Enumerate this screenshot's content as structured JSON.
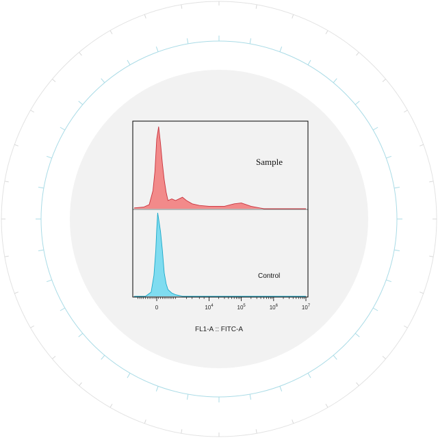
{
  "chart_data": {
    "type": "area",
    "xlabel": "FL1-A :: FITC-A",
    "ylabel": "",
    "x_scale": "biexponential",
    "x_ticks": [
      {
        "value": "0",
        "base": "0",
        "exp": ""
      },
      {
        "value": "10^4",
        "base": "10",
        "exp": "4"
      },
      {
        "value": "10^5",
        "base": "10",
        "exp": "5"
      },
      {
        "value": "10^6",
        "base": "10",
        "exp": "6"
      },
      {
        "value": "10^7",
        "base": "10",
        "exp": "7"
      }
    ],
    "x_range": [
      -1200,
      10000000
    ],
    "grid": false,
    "series": [
      {
        "name": "Sample",
        "color": "#f28a8a",
        "line_color": "#c8323c",
        "points": [
          [
            -1200,
            0.01
          ],
          [
            -700,
            0.02
          ],
          [
            -400,
            0.05
          ],
          [
            -200,
            0.22
          ],
          [
            -100,
            0.45
          ],
          [
            0,
            0.85
          ],
          [
            100,
            1.0
          ],
          [
            200,
            0.8
          ],
          [
            300,
            0.55
          ],
          [
            400,
            0.35
          ],
          [
            500,
            0.2
          ],
          [
            600,
            0.1
          ],
          [
            800,
            0.12
          ],
          [
            1000,
            0.1
          ],
          [
            1500,
            0.14
          ],
          [
            2000,
            0.1
          ],
          [
            3000,
            0.06
          ],
          [
            5000,
            0.04
          ],
          [
            10000,
            0.03
          ],
          [
            30000,
            0.03
          ],
          [
            60000,
            0.06
          ],
          [
            100000,
            0.07
          ],
          [
            200000,
            0.03
          ],
          [
            500000,
            0.0
          ],
          [
            1000000,
            0.0
          ],
          [
            10000000,
            0.0
          ]
        ]
      },
      {
        "name": "Control",
        "color": "#7fdcf0",
        "line_color": "#1aa8c8",
        "points": [
          [
            -1200,
            0.0
          ],
          [
            -600,
            0.0
          ],
          [
            -300,
            0.05
          ],
          [
            -150,
            0.25
          ],
          [
            -50,
            0.55
          ],
          [
            0,
            0.8
          ],
          [
            50,
            1.0
          ],
          [
            120,
            0.9
          ],
          [
            200,
            0.78
          ],
          [
            300,
            0.55
          ],
          [
            400,
            0.28
          ],
          [
            500,
            0.15
          ],
          [
            600,
            0.08
          ],
          [
            800,
            0.04
          ],
          [
            1000,
            0.02
          ],
          [
            1500,
            0.0
          ],
          [
            3000,
            0.0
          ],
          [
            10000000,
            0.0
          ]
        ]
      }
    ]
  }
}
